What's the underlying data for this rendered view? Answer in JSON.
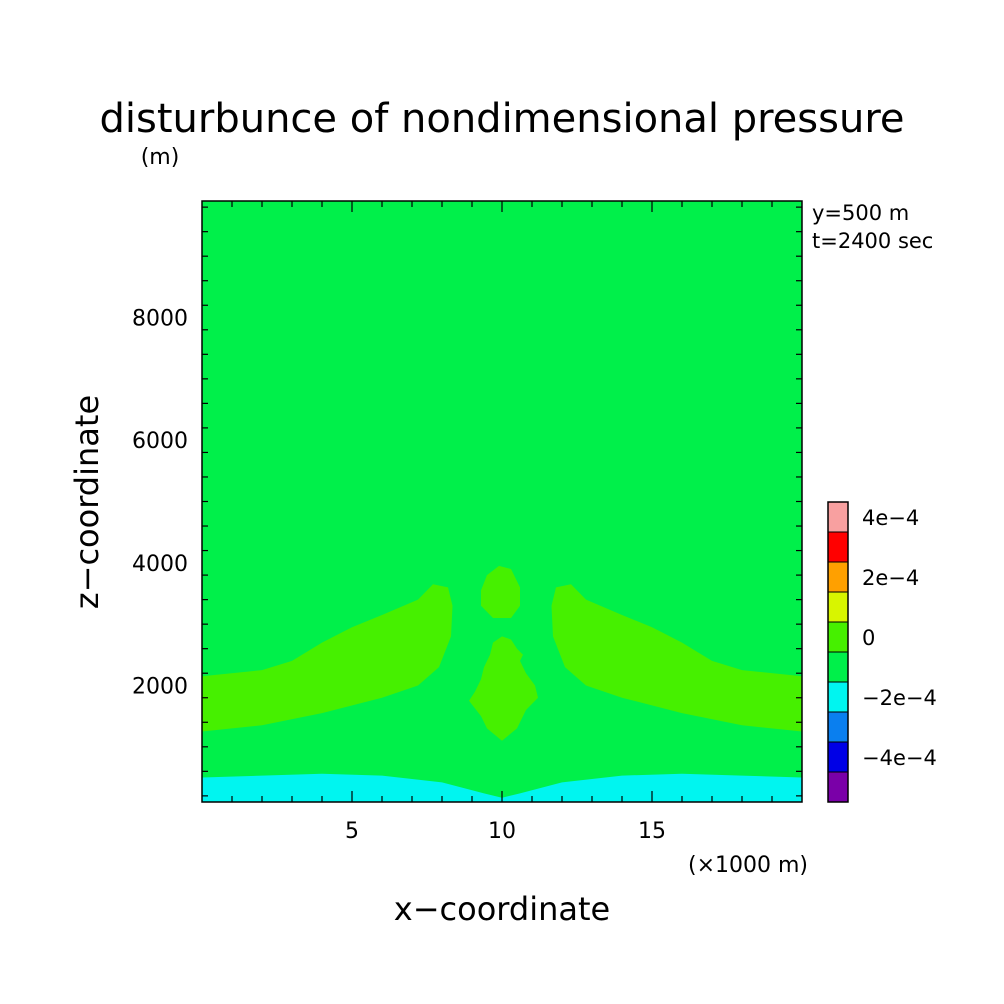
{
  "chart_data": {
    "type": "heatmap",
    "title": "disturbunce of nondimensional pressure",
    "units": "(m)",
    "xlabel": "x−coordinate",
    "ylabel": "z−coordinate",
    "x_unit_note": "(×1000 m)",
    "annotations": [
      "y=500 m",
      "t=2400 sec"
    ],
    "xlim": [
      0,
      20
    ],
    "ylim": [
      100,
      9900
    ],
    "xticks": [
      {
        "value": 5,
        "label": "5"
      },
      {
        "value": 10,
        "label": "10"
      },
      {
        "value": 15,
        "label": "15"
      }
    ],
    "yticks": [
      {
        "value": 2000,
        "label": "2000"
      },
      {
        "value": 4000,
        "label": "4000"
      },
      {
        "value": 6000,
        "label": "6000"
      },
      {
        "value": 8000,
        "label": "8000"
      }
    ],
    "background_level": "0 to 1e-4",
    "colorbar": {
      "bins": [
        {
          "range": [
            -0.0005,
            -0.0004
          ],
          "color": "#7a00a8"
        },
        {
          "range": [
            -0.0004,
            -0.0003
          ],
          "color": "#0000e6"
        },
        {
          "range": [
            -0.0003,
            -0.0002
          ],
          "color": "#0a7fef"
        },
        {
          "range": [
            -0.0002,
            -0.0001
          ],
          "color": "#00f5f0"
        },
        {
          "range": [
            -0.0001,
            0
          ],
          "color": "#00f04a"
        },
        {
          "range": [
            0,
            0.0001
          ],
          "color": "#46f000"
        },
        {
          "range": [
            0.0001,
            0.0002
          ],
          "color": "#d8f500"
        },
        {
          "range": [
            0.0002,
            0.0003
          ],
          "color": "#ffa000"
        },
        {
          "range": [
            0.0003,
            0.0004
          ],
          "color": "#ff0000"
        },
        {
          "range": [
            0.0004,
            0.0005
          ],
          "color": "#f8a0a0"
        }
      ],
      "labels": [
        {
          "value": -0.0004,
          "label": "−4e−4"
        },
        {
          "value": -0.0002,
          "label": "−2e−4"
        },
        {
          "value": 0,
          "label": "0"
        },
        {
          "value": 0.0002,
          "label": "2e−4"
        },
        {
          "value": 0.0004,
          "label": "4e−4"
        }
      ]
    },
    "regions": [
      {
        "name": "lower-layer",
        "color": "#00f5f0",
        "points": [
          [
            0,
            100
          ],
          [
            0,
            500
          ],
          [
            2,
            530
          ],
          [
            4,
            560
          ],
          [
            6,
            530
          ],
          [
            8,
            420
          ],
          [
            9.4,
            240
          ],
          [
            10,
            170
          ],
          [
            10.6,
            240
          ],
          [
            12,
            420
          ],
          [
            14,
            530
          ],
          [
            16,
            560
          ],
          [
            18,
            530
          ],
          [
            20,
            500
          ],
          [
            20,
            100
          ]
        ]
      },
      {
        "name": "left-lobe",
        "color": "#46f000",
        "points": [
          [
            0,
            1250
          ],
          [
            2,
            1350
          ],
          [
            4,
            1550
          ],
          [
            6,
            1800
          ],
          [
            7.2,
            2000
          ],
          [
            7.9,
            2300
          ],
          [
            8.3,
            2800
          ],
          [
            8.35,
            3300
          ],
          [
            8.2,
            3600
          ],
          [
            7.7,
            3650
          ],
          [
            7.2,
            3400
          ],
          [
            6,
            3150
          ],
          [
            5,
            2950
          ],
          [
            4,
            2700
          ],
          [
            3,
            2400
          ],
          [
            2,
            2250
          ],
          [
            0,
            2150
          ]
        ]
      },
      {
        "name": "right-lobe",
        "color": "#46f000",
        "points": [
          [
            20,
            1250
          ],
          [
            18,
            1350
          ],
          [
            16,
            1550
          ],
          [
            14,
            1800
          ],
          [
            12.8,
            2000
          ],
          [
            12.1,
            2300
          ],
          [
            11.7,
            2800
          ],
          [
            11.65,
            3300
          ],
          [
            11.8,
            3600
          ],
          [
            12.3,
            3650
          ],
          [
            12.8,
            3400
          ],
          [
            14,
            3150
          ],
          [
            15,
            2950
          ],
          [
            16,
            2700
          ],
          [
            17,
            2400
          ],
          [
            18,
            2250
          ],
          [
            20,
            2150
          ]
        ]
      },
      {
        "name": "center-lower",
        "color": "#46f000",
        "points": [
          [
            9.3,
            1500
          ],
          [
            9.5,
            1300
          ],
          [
            10,
            1100
          ],
          [
            10.5,
            1300
          ],
          [
            10.8,
            1600
          ],
          [
            11.2,
            1800
          ],
          [
            11.1,
            2000
          ],
          [
            10.8,
            2200
          ],
          [
            10.6,
            2400
          ],
          [
            10.7,
            2500
          ],
          [
            10.5,
            2600
          ],
          [
            10.3,
            2750
          ],
          [
            10,
            2800
          ],
          [
            9.7,
            2700
          ],
          [
            9.6,
            2500
          ],
          [
            9.4,
            2300
          ],
          [
            9.3,
            2100
          ],
          [
            9.1,
            1900
          ],
          [
            8.9,
            1750
          ]
        ]
      },
      {
        "name": "center-upper",
        "color": "#46f000",
        "points": [
          [
            9.3,
            3300
          ],
          [
            9.3,
            3550
          ],
          [
            9.5,
            3800
          ],
          [
            9.9,
            3950
          ],
          [
            10.3,
            3900
          ],
          [
            10.6,
            3600
          ],
          [
            10.6,
            3300
          ],
          [
            10.3,
            3100
          ],
          [
            9.7,
            3100
          ]
        ]
      }
    ]
  }
}
